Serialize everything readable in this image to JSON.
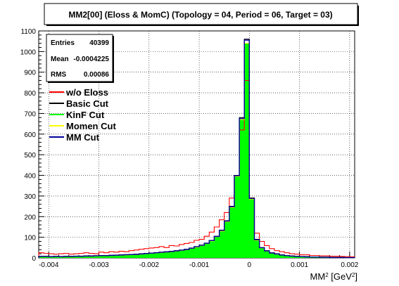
{
  "chart_data": {
    "type": "histogram",
    "title": "MM2[00] (Eloss & MomC) (Topology = 04, Period = 06, Target = 03)",
    "xlabel": "MM² [GeV²]",
    "ylabel": "",
    "xlim": [
      -0.0042,
      0.0021
    ],
    "ylim": [
      0,
      1100
    ],
    "x_ticks": [
      -0.004,
      -0.003,
      -0.002,
      -0.001,
      0,
      0.001,
      0.002
    ],
    "x_tick_labels": [
      "-0.004",
      "-0.003",
      "-0.002",
      "-0.001",
      "0",
      "0.001",
      "0.002"
    ],
    "y_ticks": [
      0,
      100,
      200,
      300,
      400,
      500,
      600,
      700,
      800,
      900,
      1000,
      1100
    ],
    "grid": true,
    "stats": {
      "entries_label": "Entries",
      "entries_value": "40399",
      "mean_label": "Mean",
      "mean_value": "-0.0004225",
      "rms_label": "RMS",
      "rms_value": "0.00086"
    },
    "series": [
      {
        "name": "w/o Eloss",
        "color": "#ff0000",
        "x": [
          -0.0042,
          -0.0041,
          -0.004,
          -0.0039,
          -0.0038,
          -0.0037,
          -0.0036,
          -0.0035,
          -0.0034,
          -0.0033,
          -0.0032,
          -0.0031,
          -0.003,
          -0.0029,
          -0.0028,
          -0.0027,
          -0.0026,
          -0.0025,
          -0.0024,
          -0.0023,
          -0.0022,
          -0.0021,
          -0.002,
          -0.0019,
          -0.0018,
          -0.0017,
          -0.0016,
          -0.0015,
          -0.0014,
          -0.0013,
          -0.0012,
          -0.0011,
          -0.001,
          -0.0009,
          -0.0008,
          -0.0007,
          -0.0006,
          -0.0005,
          -0.0004,
          -0.0003,
          -0.0002,
          -0.0001,
          0.0,
          0.0001,
          0.0002,
          0.0003,
          0.0004,
          0.0005,
          0.0006,
          0.0007,
          0.0008,
          0.0009,
          0.001,
          0.0011,
          0.0012,
          0.0013,
          0.0014,
          0.0015,
          0.0016,
          0.0017,
          0.0018,
          0.0019,
          0.002
        ],
        "values": [
          25,
          22,
          20,
          18,
          20,
          22,
          18,
          20,
          22,
          25,
          22,
          20,
          28,
          25,
          30,
          28,
          32,
          30,
          35,
          38,
          42,
          45,
          48,
          50,
          55,
          50,
          60,
          58,
          65,
          70,
          75,
          85,
          90,
          105,
          125,
          150,
          185,
          220,
          290,
          400,
          620,
          860,
          290,
          120,
          80,
          60,
          45,
          35,
          30,
          25,
          20,
          18,
          15,
          15,
          12,
          12,
          10,
          10,
          8,
          8,
          7,
          6,
          5
        ]
      },
      {
        "name": "Basic Cut",
        "color": "#000000",
        "x": [
          -0.0042,
          -0.0041,
          -0.004,
          -0.0039,
          -0.0038,
          -0.0037,
          -0.0036,
          -0.0035,
          -0.0034,
          -0.0033,
          -0.0032,
          -0.0031,
          -0.003,
          -0.0029,
          -0.0028,
          -0.0027,
          -0.0026,
          -0.0025,
          -0.0024,
          -0.0023,
          -0.0022,
          -0.0021,
          -0.002,
          -0.0019,
          -0.0018,
          -0.0017,
          -0.0016,
          -0.0015,
          -0.0014,
          -0.0013,
          -0.0012,
          -0.0011,
          -0.001,
          -0.0009,
          -0.0008,
          -0.0007,
          -0.0006,
          -0.0005,
          -0.0004,
          -0.0003,
          -0.0002,
          -0.0001,
          0.0,
          0.0001,
          0.0002,
          0.0003,
          0.0004,
          0.0005,
          0.0006,
          0.0007,
          0.0008,
          0.0009,
          0.001,
          0.0011,
          0.0012,
          0.0013,
          0.0014,
          0.0015,
          0.0016,
          0.0017,
          0.0018,
          0.0019,
          0.002
        ],
        "values": [
          8,
          8,
          7,
          8,
          7,
          8,
          8,
          9,
          9,
          10,
          10,
          11,
          12,
          12,
          13,
          14,
          15,
          16,
          17,
          18,
          20,
          22,
          24,
          26,
          28,
          30,
          32,
          35,
          38,
          42,
          48,
          55,
          62,
          72,
          85,
          105,
          135,
          180,
          250,
          400,
          680,
          1060,
          290,
          90,
          50,
          35,
          25,
          20,
          15,
          12,
          10,
          8,
          7,
          6,
          5,
          5,
          4,
          4,
          3,
          3,
          3,
          2,
          2
        ]
      },
      {
        "name": "KinF Cut",
        "color": "#00ff00",
        "x": [
          -0.0042,
          -0.0041,
          -0.004,
          -0.0039,
          -0.0038,
          -0.0037,
          -0.0036,
          -0.0035,
          -0.0034,
          -0.0033,
          -0.0032,
          -0.0031,
          -0.003,
          -0.0029,
          -0.0028,
          -0.0027,
          -0.0026,
          -0.0025,
          -0.0024,
          -0.0023,
          -0.0022,
          -0.0021,
          -0.002,
          -0.0019,
          -0.0018,
          -0.0017,
          -0.0016,
          -0.0015,
          -0.0014,
          -0.0013,
          -0.0012,
          -0.0011,
          -0.001,
          -0.0009,
          -0.0008,
          -0.0007,
          -0.0006,
          -0.0005,
          -0.0004,
          -0.0003,
          -0.0002,
          -0.0001,
          0.0,
          0.0001,
          0.0002,
          0.0003,
          0.0004,
          0.0005,
          0.0006,
          0.0007,
          0.0008,
          0.0009,
          0.001,
          0.0011,
          0.0012,
          0.0013,
          0.0014,
          0.0015,
          0.0016,
          0.0017,
          0.0018,
          0.0019,
          0.002
        ],
        "values": [
          6,
          6,
          5,
          6,
          5,
          6,
          6,
          7,
          7,
          8,
          8,
          9,
          10,
          10,
          11,
          12,
          13,
          14,
          15,
          16,
          18,
          20,
          22,
          24,
          26,
          28,
          30,
          33,
          36,
          40,
          46,
          52,
          60,
          70,
          82,
          102,
          130,
          175,
          245,
          395,
          670,
          1040,
          285,
          85,
          48,
          33,
          23,
          18,
          14,
          11,
          9,
          7,
          6,
          5,
          4,
          4,
          3,
          3,
          2,
          2,
          2,
          1,
          1
        ]
      },
      {
        "name": "Momen Cut",
        "color": "#ffff00",
        "x": [
          -0.0042,
          -0.0041,
          -0.004,
          -0.0039,
          -0.0038,
          -0.0037,
          -0.0036,
          -0.0035,
          -0.0034,
          -0.0033,
          -0.0032,
          -0.0031,
          -0.003,
          -0.0029,
          -0.0028,
          -0.0027,
          -0.0026,
          -0.0025,
          -0.0024,
          -0.0023,
          -0.0022,
          -0.0021,
          -0.002,
          -0.0019,
          -0.0018,
          -0.0017,
          -0.0016,
          -0.0015,
          -0.0014,
          -0.0013,
          -0.0012,
          -0.0011,
          -0.001,
          -0.0009,
          -0.0008,
          -0.0007,
          -0.0006,
          -0.0005,
          -0.0004,
          -0.0003,
          -0.0002,
          -0.0001,
          0.0,
          0.0001,
          0.0002,
          0.0003,
          0.0004,
          0.0005,
          0.0006,
          0.0007,
          0.0008,
          0.0009,
          0.001,
          0.0011,
          0.0012,
          0.0013,
          0.0014,
          0.0015,
          0.0016,
          0.0017,
          0.0018,
          0.0019,
          0.002
        ],
        "values": [
          6,
          6,
          5,
          6,
          5,
          6,
          6,
          7,
          7,
          8,
          8,
          9,
          10,
          10,
          11,
          12,
          13,
          14,
          15,
          16,
          18,
          20,
          22,
          24,
          26,
          28,
          30,
          33,
          36,
          40,
          46,
          52,
          60,
          70,
          82,
          102,
          130,
          175,
          245,
          395,
          670,
          1040,
          285,
          85,
          48,
          33,
          23,
          18,
          14,
          11,
          9,
          7,
          6,
          5,
          4,
          4,
          3,
          3,
          2,
          2,
          2,
          1,
          1
        ]
      },
      {
        "name": "MM Cut",
        "color": "#000099",
        "x": [
          -0.0042,
          -0.0041,
          -0.004,
          -0.0039,
          -0.0038,
          -0.0037,
          -0.0036,
          -0.0035,
          -0.0034,
          -0.0033,
          -0.0032,
          -0.0031,
          -0.003,
          -0.0029,
          -0.0028,
          -0.0027,
          -0.0026,
          -0.0025,
          -0.0024,
          -0.0023,
          -0.0022,
          -0.0021,
          -0.002,
          -0.0019,
          -0.0018,
          -0.0017,
          -0.0016,
          -0.0015,
          -0.0014,
          -0.0013,
          -0.0012,
          -0.0011,
          -0.001,
          -0.0009,
          -0.0008,
          -0.0007,
          -0.0006,
          -0.0005,
          -0.0004,
          -0.0003,
          -0.0002,
          -0.0001,
          0.0,
          0.0001,
          0.0002,
          0.0003,
          0.0004,
          0.0005,
          0.0006,
          0.0007,
          0.0008,
          0.0009,
          0.001,
          0.0011,
          0.0012,
          0.0013,
          0.0014,
          0.0015,
          0.0016,
          0.0017,
          0.0018,
          0.0019,
          0.002
        ],
        "values": [
          7,
          7,
          6,
          7,
          6,
          7,
          7,
          8,
          8,
          9,
          9,
          10,
          11,
          11,
          12,
          13,
          14,
          15,
          16,
          17,
          19,
          21,
          23,
          25,
          27,
          29,
          31,
          34,
          37,
          41,
          47,
          54,
          61,
          71,
          84,
          104,
          133,
          178,
          248,
          398,
          675,
          1055,
          288,
          88,
          49,
          34,
          24,
          19,
          14,
          11,
          9,
          7,
          6,
          5,
          4,
          4,
          3,
          3,
          2,
          2,
          2,
          1,
          1
        ]
      }
    ]
  }
}
